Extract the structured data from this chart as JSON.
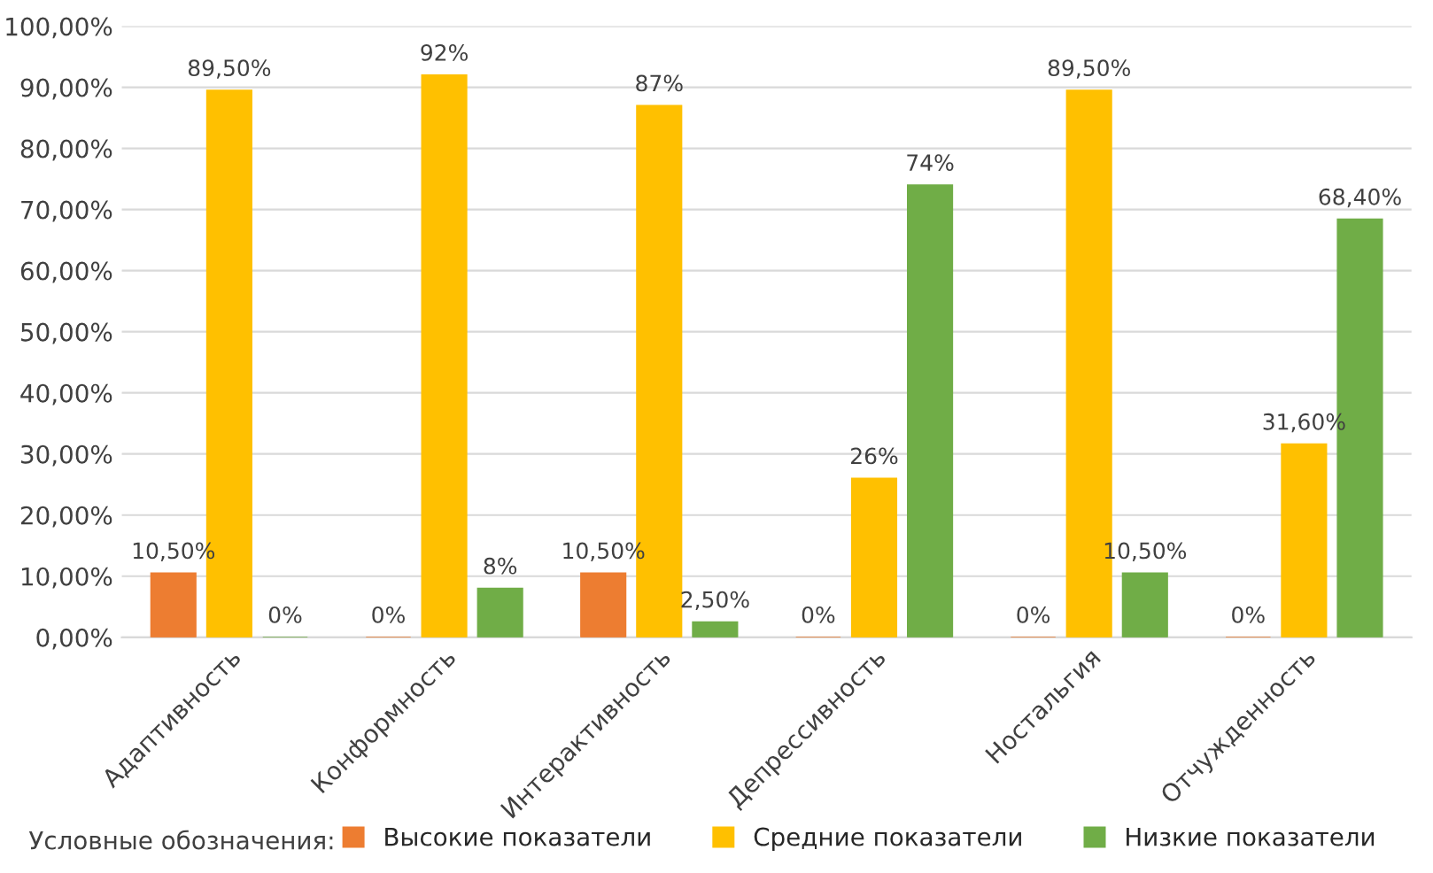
{
  "chart_data": {
    "type": "bar",
    "categories": [
      "Адаптивность",
      "Конформность",
      "Интерактивность",
      "Депрессивность",
      "Ностальгия",
      "Отчужденность"
    ],
    "series": [
      {
        "name": "Высокие показатели",
        "color": "#ed7d31",
        "values": [
          10.5,
          0,
          10.5,
          0,
          0,
          0
        ],
        "value_labels": [
          "10,50%",
          "0%",
          "10,50%",
          "0%",
          "0%",
          "0%"
        ]
      },
      {
        "name": "Средние показатели",
        "color": "#ffc000",
        "values": [
          89.5,
          92,
          87,
          26,
          89.5,
          31.6
        ],
        "value_labels": [
          "89,50%",
          "92%",
          "87%",
          "26%",
          "89,50%",
          "31,60%"
        ]
      },
      {
        "name": "Низкие показатели",
        "color": "#70ad47",
        "values": [
          0,
          8,
          2.5,
          74,
          10.5,
          68.4
        ],
        "value_labels": [
          "0%",
          "8%",
          "2,50%",
          "74%",
          "10,50%",
          "68,40%"
        ]
      }
    ],
    "ylim": [
      0,
      100
    ],
    "yticks": [
      {
        "value": 0,
        "label": "0,00%"
      },
      {
        "value": 10,
        "label": "10,00%"
      },
      {
        "value": 20,
        "label": "20,00%"
      },
      {
        "value": 30,
        "label": "30,00%"
      },
      {
        "value": 40,
        "label": "40,00%"
      },
      {
        "value": 50,
        "label": "50,00%"
      },
      {
        "value": 60,
        "label": "60,00%"
      },
      {
        "value": 70,
        "label": "70,00%"
      },
      {
        "value": 80,
        "label": "80,00%"
      },
      {
        "value": 90,
        "label": "90,00%"
      },
      {
        "value": 100,
        "label": "100,00%"
      }
    ],
    "grid": "y",
    "legend": "bottom",
    "legend_title": "Условные обозначения:"
  }
}
